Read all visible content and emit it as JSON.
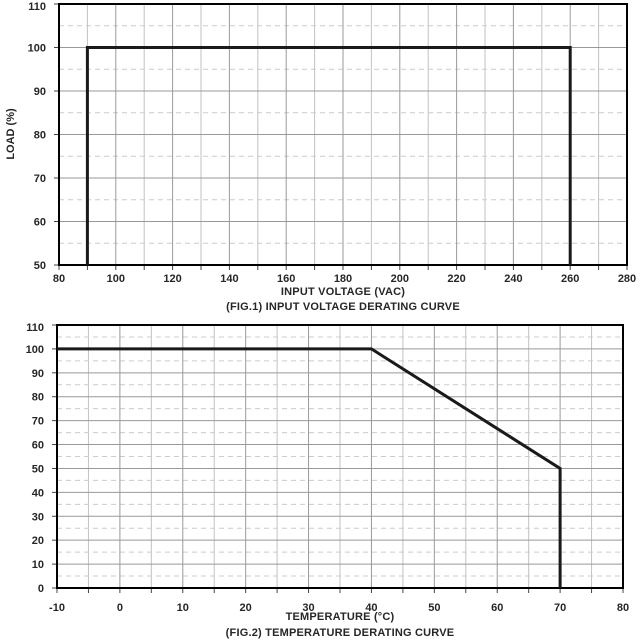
{
  "page": {
    "background": "#ffffff"
  },
  "colors": {
    "plot_border": "#000000",
    "curve": "#1a1a1a",
    "grid_major": "#999999",
    "grid_minor_vertical": "#c2c2c2",
    "grid_minor_horizontal": "#cccccc",
    "tick": "#444444",
    "text": "#262626"
  },
  "chart_data": [
    {
      "id": "fig1",
      "type": "line",
      "title": "(FIG.1) INPUT VOLTAGE DERATING CURVE",
      "xlabel": "INPUT VOLTAGE (VAC)",
      "ylabel": "LOAD (%)",
      "xlim": [
        80,
        280
      ],
      "ylim": [
        50,
        110
      ],
      "x_tick_labels": [
        80,
        100,
        120,
        140,
        160,
        180,
        200,
        220,
        240,
        260,
        280
      ],
      "y_tick_labels": [
        110,
        100,
        90,
        80,
        70,
        60,
        50
      ],
      "x_major_step": 20,
      "x_minor_step": 10,
      "y_major_step": 10,
      "y_minor_step": 5,
      "grid": true,
      "legend": "none",
      "series": [
        {
          "name": "load-vs-input-voltage",
          "points": [
            [
              90,
              50
            ],
            [
              90,
              100
            ],
            [
              260,
              100
            ],
            [
              260,
              50
            ]
          ]
        }
      ]
    },
    {
      "id": "fig2",
      "type": "line",
      "title": "(FIG.2) TEMPERATURE DERATING CURVE",
      "xlabel": "TEMPERATURE (°C)",
      "ylabel": "",
      "xlim": [
        -10,
        80
      ],
      "ylim": [
        0,
        110
      ],
      "x_tick_labels": [
        -10,
        0,
        10,
        20,
        30,
        40,
        50,
        60,
        70,
        80
      ],
      "y_tick_labels": [
        110,
        100,
        90,
        80,
        70,
        60,
        50,
        40,
        30,
        20,
        10,
        0
      ],
      "x_major_step": 10,
      "x_minor_step": 5,
      "y_major_step": 10,
      "y_minor_step": 5,
      "grid": true,
      "legend": "none",
      "series": [
        {
          "name": "load-vs-temperature",
          "points": [
            [
              -10,
              100
            ],
            [
              40,
              100
            ],
            [
              70,
              50
            ],
            [
              70,
              0
            ]
          ]
        }
      ]
    }
  ]
}
